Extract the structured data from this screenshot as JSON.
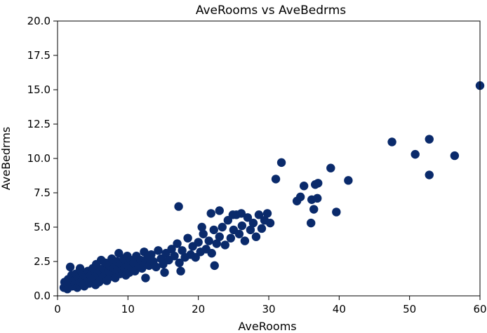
{
  "chart_data": {
    "type": "scatter",
    "title": "AveRooms vs AveBedrms",
    "xlabel": "AveRooms",
    "ylabel": "AveBedrms",
    "xlim": [
      0,
      60
    ],
    "ylim": [
      0,
      20
    ],
    "xticks": [
      "0",
      "10",
      "20",
      "30",
      "40",
      "50",
      "60"
    ],
    "yticks": [
      "0.0",
      "2.5",
      "5.0",
      "7.5",
      "10.0",
      "12.5",
      "15.0",
      "17.5",
      "20.0"
    ],
    "grid": false,
    "marker_color": "#0a2a6b",
    "points": [
      [
        0.9,
        0.6
      ],
      [
        1.0,
        1.0
      ],
      [
        1.2,
        0.8
      ],
      [
        1.4,
        0.5
      ],
      [
        1.5,
        1.2
      ],
      [
        1.8,
        0.9
      ],
      [
        2.0,
        1.5
      ],
      [
        2.1,
        0.7
      ],
      [
        2.3,
        1.1
      ],
      [
        2.5,
        0.9
      ],
      [
        2.6,
        1.6
      ],
      [
        2.8,
        0.6
      ],
      [
        3.0,
        1.3
      ],
      [
        3.1,
        0.8
      ],
      [
        3.3,
        1.0
      ],
      [
        3.5,
        1.7
      ],
      [
        3.6,
        1.2
      ],
      [
        3.8,
        0.7
      ],
      [
        4.0,
        1.4
      ],
      [
        4.1,
        1.0
      ],
      [
        4.3,
        1.8
      ],
      [
        4.5,
        0.9
      ],
      [
        4.7,
        1.5
      ],
      [
        4.8,
        1.1
      ],
      [
        5.0,
        2.0
      ],
      [
        5.2,
        1.3
      ],
      [
        5.4,
        0.8
      ],
      [
        5.5,
        2.3
      ],
      [
        5.7,
        1.6
      ],
      [
        5.9,
        1.0
      ],
      [
        6.0,
        1.8
      ],
      [
        6.2,
        2.6
      ],
      [
        6.3,
        1.2
      ],
      [
        6.5,
        2.0
      ],
      [
        6.7,
        1.5
      ],
      [
        6.8,
        2.4
      ],
      [
        7.0,
        1.1
      ],
      [
        7.2,
        1.8
      ],
      [
        7.4,
        2.2
      ],
      [
        7.5,
        1.4
      ],
      [
        7.7,
        2.7
      ],
      [
        7.9,
        1.7
      ],
      [
        8.0,
        2.0
      ],
      [
        8.2,
        1.3
      ],
      [
        8.4,
        2.5
      ],
      [
        8.5,
        1.9
      ],
      [
        8.7,
        3.1
      ],
      [
        8.9,
        1.6
      ],
      [
        9.0,
        2.3
      ],
      [
        9.2,
        1.8
      ],
      [
        9.4,
        2.7
      ],
      [
        9.5,
        2.0
      ],
      [
        9.7,
        1.5
      ],
      [
        9.9,
        2.9
      ],
      [
        10.0,
        2.2
      ],
      [
        10.2,
        1.7
      ],
      [
        10.4,
        2.6
      ],
      [
        10.5,
        2.0
      ],
      [
        10.8,
        2.4
      ],
      [
        11.0,
        1.8
      ],
      [
        11.2,
        2.9
      ],
      [
        11.5,
        2.2
      ],
      [
        11.8,
        2.6
      ],
      [
        12.0,
        2.0
      ],
      [
        12.3,
        3.2
      ],
      [
        12.5,
        2.4
      ],
      [
        12.8,
        2.8
      ],
      [
        13.0,
        2.2
      ],
      [
        13.3,
        3.0
      ],
      [
        13.6,
        2.5
      ],
      [
        14.0,
        2.1
      ],
      [
        14.3,
        3.3
      ],
      [
        14.7,
        2.7
      ],
      [
        15.0,
        2.3
      ],
      [
        15.4,
        3.1
      ],
      [
        15.8,
        2.6
      ],
      [
        16.2,
        3.4
      ],
      [
        16.6,
        2.9
      ],
      [
        17.0,
        3.8
      ],
      [
        17.3,
        2.4
      ],
      [
        17.7,
        3.3
      ],
      [
        18.1,
        2.8
      ],
      [
        18.5,
        4.2
      ],
      [
        18.9,
        3.0
      ],
      [
        19.2,
        3.6
      ],
      [
        19.6,
        2.8
      ],
      [
        20.0,
        3.9
      ],
      [
        20.3,
        3.2
      ],
      [
        20.7,
        4.5
      ],
      [
        21.1,
        3.4
      ],
      [
        21.5,
        4.0
      ],
      [
        21.9,
        3.1
      ],
      [
        22.2,
        4.8
      ],
      [
        22.6,
        3.8
      ],
      [
        23.0,
        4.3
      ],
      [
        23.4,
        5.0
      ],
      [
        23.8,
        3.7
      ],
      [
        24.2,
        5.5
      ],
      [
        24.6,
        4.2
      ],
      [
        25.0,
        4.8
      ],
      [
        25.4,
        5.9
      ],
      [
        25.8,
        4.5
      ],
      [
        26.2,
        5.1
      ],
      [
        26.6,
        4.0
      ],
      [
        27.0,
        5.7
      ],
      [
        27.4,
        4.8
      ],
      [
        27.8,
        5.3
      ],
      [
        28.2,
        4.3
      ],
      [
        28.6,
        5.9
      ],
      [
        29.0,
        4.9
      ],
      [
        29.4,
        5.5
      ],
      [
        29.8,
        6.0
      ],
      [
        30.2,
        5.3
      ],
      [
        17.2,
        6.5
      ],
      [
        20.5,
        5.0
      ],
      [
        21.8,
        6.0
      ],
      [
        23.0,
        6.2
      ],
      [
        24.9,
        5.9
      ],
      [
        26.1,
        6.0
      ],
      [
        22.3,
        2.2
      ],
      [
        17.5,
        1.8
      ],
      [
        12.5,
        1.3
      ],
      [
        15.2,
        1.7
      ],
      [
        3.2,
        2.0
      ],
      [
        1.8,
        2.1
      ],
      [
        31.0,
        8.5
      ],
      [
        31.8,
        9.7
      ],
      [
        34.0,
        6.9
      ],
      [
        34.5,
        7.2
      ],
      [
        35.0,
        8.0
      ],
      [
        36.0,
        5.3
      ],
      [
        36.1,
        7.0
      ],
      [
        36.4,
        6.3
      ],
      [
        36.6,
        8.1
      ],
      [
        36.9,
        7.1
      ],
      [
        37.0,
        8.2
      ],
      [
        38.8,
        9.3
      ],
      [
        39.6,
        6.1
      ],
      [
        41.3,
        8.4
      ],
      [
        47.5,
        11.2
      ],
      [
        50.8,
        10.3
      ],
      [
        52.8,
        8.8
      ],
      [
        52.8,
        11.4
      ],
      [
        56.4,
        10.2
      ],
      [
        60.0,
        15.3
      ]
    ]
  }
}
